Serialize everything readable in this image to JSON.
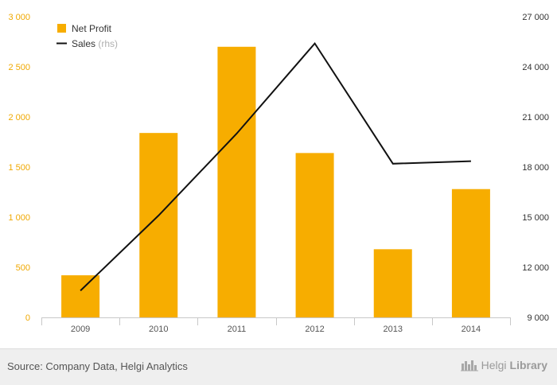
{
  "chart_data": {
    "type": "bar",
    "categories": [
      "2009",
      "2010",
      "2011",
      "2012",
      "2013",
      "2014"
    ],
    "series": [
      {
        "name": "Net Profit",
        "type": "bar",
        "axis": "left",
        "color": "#f7ad00",
        "values": [
          420,
          1840,
          2700,
          1640,
          680,
          1280
        ]
      },
      {
        "name": "Sales",
        "type": "line",
        "axis": "right",
        "color": "#111111",
        "values": [
          10600,
          15100,
          20000,
          25400,
          18200,
          18350
        ]
      }
    ],
    "left_axis": {
      "min": 0,
      "max": 3000,
      "ticks": [
        0,
        500,
        1000,
        1500,
        2000,
        2500,
        3000
      ],
      "tick_labels": [
        "0",
        "500",
        "1 000",
        "1 500",
        "2 000",
        "2 500",
        "3 000"
      ],
      "tick_color": "#f0a800"
    },
    "right_axis": {
      "min": 9000,
      "max": 27000,
      "ticks": [
        9000,
        12000,
        15000,
        18000,
        21000,
        24000,
        27000
      ],
      "tick_labels": [
        "9 000",
        "12 000",
        "15 000",
        "18 000",
        "21 000",
        "24 000",
        "27 000"
      ],
      "tick_color": "#333333"
    },
    "legend": {
      "position": "top-left",
      "items": [
        {
          "label": "Net Profit",
          "suffix": ""
        },
        {
          "label": "Sales",
          "suffix": "(rhs)"
        }
      ]
    },
    "grid": false
  },
  "footer": {
    "source": "Source: Company Data, Helgi Analytics",
    "brand_part1": "Helgi",
    "brand_part2": "Library"
  }
}
